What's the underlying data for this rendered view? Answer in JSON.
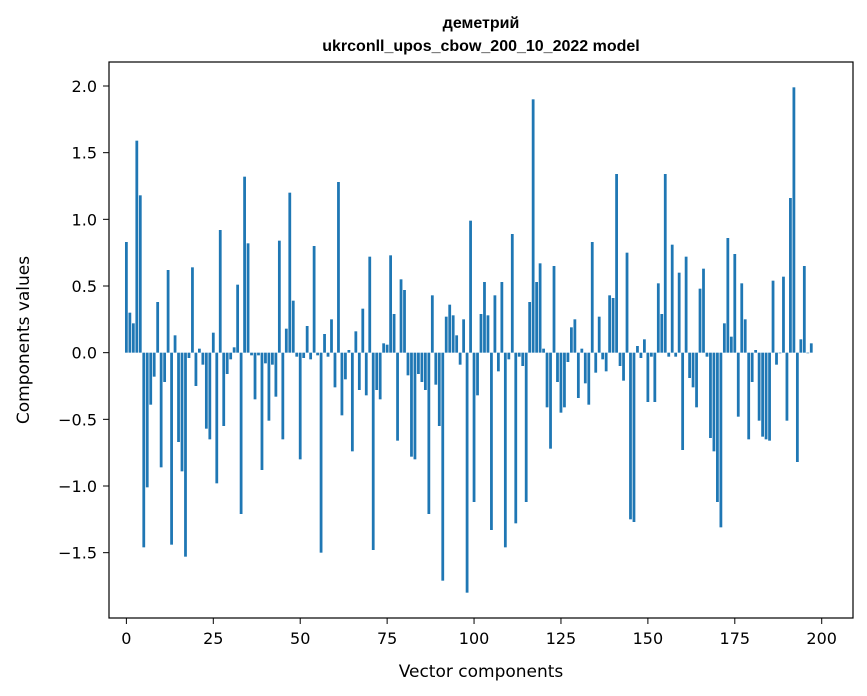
{
  "chart_data": {
    "type": "bar",
    "title_line1": "деметрий",
    "title_line2": "ukrconll_upos_cbow_200_10_2022 model",
    "xlabel": "Vector components",
    "ylabel": "Components values",
    "bar_color": "#1f77b4",
    "xlim": [
      -5,
      209
    ],
    "ylim": [
      -1.99,
      2.18
    ],
    "xticks": [
      0,
      25,
      50,
      75,
      100,
      125,
      150,
      175,
      200
    ],
    "xtick_labels": [
      "0",
      "25",
      "50",
      "75",
      "100",
      "125",
      "150",
      "175",
      "200"
    ],
    "yticks": [
      -1.5,
      -1.0,
      -0.5,
      0.0,
      0.5,
      1.0,
      1.5,
      2.0
    ],
    "ytick_labels": [
      "−1.5",
      "−1.0",
      "−0.5",
      "0.0",
      "0.5",
      "1.0",
      "1.5",
      "2.0"
    ],
    "values": [
      0.83,
      0.3,
      0.22,
      1.59,
      1.18,
      -1.46,
      -1.01,
      -0.39,
      -0.18,
      0.38,
      -0.86,
      -0.22,
      0.62,
      -1.44,
      0.13,
      -0.67,
      -0.89,
      -1.53,
      -0.04,
      0.64,
      -0.25,
      0.03,
      -0.09,
      -0.57,
      -0.65,
      0.15,
      -0.98,
      0.92,
      -0.55,
      -0.16,
      -0.05,
      0.04,
      0.51,
      -1.21,
      1.32,
      0.82,
      -0.02,
      -0.35,
      -0.02,
      -0.88,
      -0.08,
      -0.51,
      -0.09,
      -0.33,
      0.84,
      -0.65,
      0.18,
      1.2,
      0.39,
      -0.03,
      -0.8,
      -0.04,
      0.2,
      -0.05,
      0.8,
      -0.02,
      -1.5,
      0.14,
      -0.03,
      0.25,
      -0.26,
      1.28,
      -0.47,
      -0.2,
      0.02,
      -0.74,
      0.16,
      -0.28,
      0.33,
      -0.32,
      0.72,
      -1.48,
      -0.28,
      -0.35,
      0.07,
      0.06,
      0.73,
      0.29,
      -0.66,
      0.55,
      0.47,
      -0.17,
      -0.78,
      -0.8,
      -0.16,
      -0.22,
      -0.28,
      -1.21,
      0.43,
      -0.24,
      -0.55,
      -1.71,
      0.27,
      0.36,
      0.28,
      0.13,
      -0.09,
      0.25,
      -1.8,
      0.99,
      -1.12,
      -0.32,
      0.29,
      0.53,
      0.28,
      -1.33,
      0.43,
      -0.14,
      0.53,
      -1.46,
      -0.05,
      0.89,
      -1.28,
      -0.03,
      -0.1,
      -1.12,
      0.38,
      1.9,
      0.53,
      0.67,
      0.03,
      -0.41,
      -0.72,
      0.65,
      -0.22,
      -0.45,
      -0.41,
      -0.07,
      0.19,
      0.25,
      -0.34,
      0.03,
      -0.23,
      -0.39,
      0.83,
      -0.15,
      0.27,
      -0.05,
      -0.14,
      0.43,
      0.41,
      1.34,
      -0.1,
      -0.21,
      0.75,
      -1.25,
      -1.27,
      0.05,
      -0.04,
      0.1,
      -0.37,
      -0.03,
      -0.37,
      0.52,
      0.29,
      1.34,
      -0.03,
      0.81,
      -0.03,
      0.6,
      -0.73,
      0.72,
      -0.19,
      -0.26,
      -0.41,
      0.48,
      0.63,
      -0.03,
      -0.64,
      -0.74,
      -1.12,
      -1.31,
      0.22,
      0.86,
      0.12,
      0.74,
      -0.48,
      0.52,
      0.25,
      -0.65,
      -0.22,
      0.02,
      -0.51,
      -0.63,
      -0.65,
      -0.66,
      0.54,
      -0.09,
      0.0,
      0.57,
      -0.51,
      1.16,
      1.99,
      -0.82,
      0.1,
      0.65,
      0.0,
      0.07
    ]
  }
}
